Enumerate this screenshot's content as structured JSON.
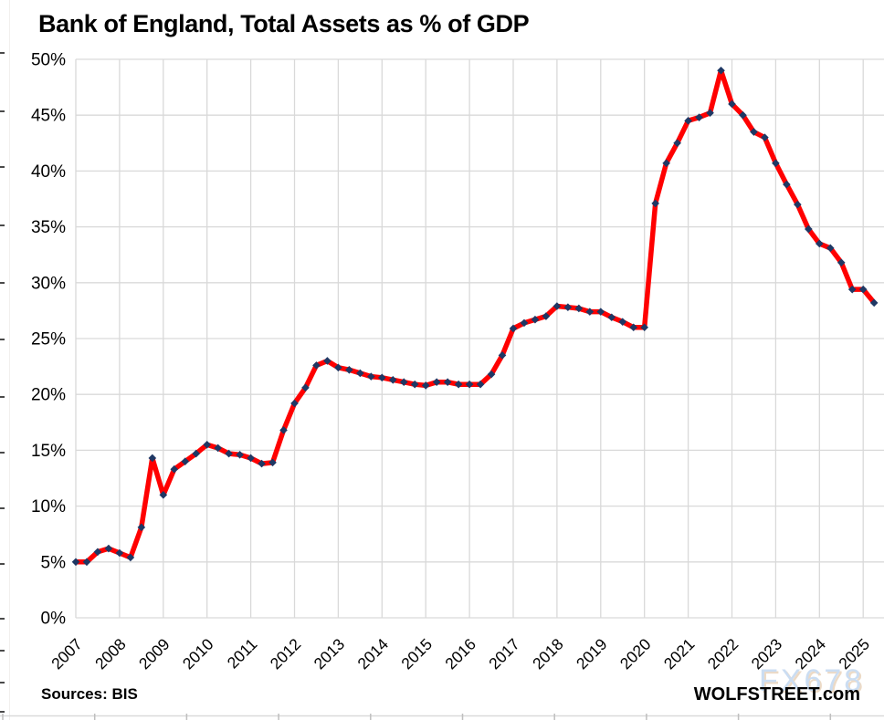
{
  "page": {
    "title": "Bank of England, Total Assets as % of GDP",
    "footer": {
      "sources": "Sources: BIS",
      "brand": "WOLFSTREET.com",
      "watermark": "FX678"
    }
  },
  "colors": {
    "line": "#ff0000",
    "marker": "#1f3864",
    "grid": "#d9d9d9",
    "axis_text": "#000000",
    "edge_tick": "#4a4a4a",
    "bottom_rule": "#d9d9d9",
    "bottom_nub": "#bfbfbf",
    "watermark_fill": "#c9dcf2",
    "watermark_shadow": "#ecd9c3",
    "background": "#ffffff"
  },
  "chart_data": {
    "type": "line",
    "title": "Bank of England, Total Assets as % of GDP",
    "xlabel": "",
    "ylabel": "",
    "legend": "none",
    "grid": "both",
    "frequency": "quarterly",
    "x_start": 2007.0,
    "x_step": 0.25,
    "xlim": [
      2007,
      2025.5
    ],
    "ylim": [
      0,
      50
    ],
    "x_tick_labels": [
      "2007",
      "2008",
      "2009",
      "2010",
      "2011",
      "2012",
      "2013",
      "2014",
      "2015",
      "2016",
      "2017",
      "2018",
      "2019",
      "2020",
      "2021",
      "2022",
      "2023",
      "2024",
      "2025"
    ],
    "y_tick_values": [
      0,
      5,
      10,
      15,
      20,
      25,
      30,
      35,
      40,
      45,
      50
    ],
    "y_tick_format": "{v}%",
    "series": [
      {
        "name": "Bank of England total assets as % of GDP",
        "values": [
          5.0,
          5.0,
          5.9,
          6.2,
          5.8,
          5.4,
          8.1,
          14.3,
          11.0,
          13.3,
          14.0,
          14.7,
          15.5,
          15.2,
          14.7,
          14.6,
          14.3,
          13.8,
          13.9,
          16.8,
          19.2,
          20.6,
          22.6,
          23.0,
          22.4,
          22.2,
          21.9,
          21.6,
          21.5,
          21.3,
          21.1,
          20.9,
          20.8,
          21.1,
          21.1,
          20.9,
          20.9,
          20.9,
          21.8,
          23.5,
          25.9,
          26.4,
          26.7,
          27.0,
          27.9,
          27.8,
          27.7,
          27.4,
          27.4,
          26.9,
          26.5,
          26.0,
          26.0,
          37.1,
          40.7,
          42.5,
          44.5,
          44.8,
          45.2,
          49.0,
          46.0,
          45.0,
          43.5,
          43.0,
          40.7,
          38.8,
          37.0,
          34.8,
          33.5,
          33.1,
          31.8,
          29.4,
          29.4,
          28.2
        ]
      }
    ]
  }
}
